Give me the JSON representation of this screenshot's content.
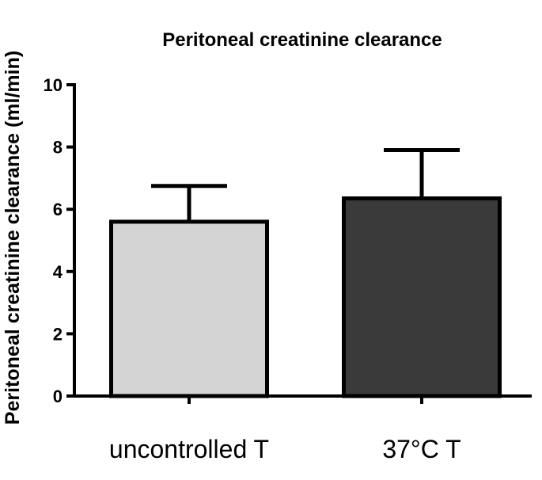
{
  "chart_data": {
    "type": "bar",
    "title": "Peritoneal creatinine clearance",
    "xlabel": "",
    "ylabel": "Peritoneal creatinine clearance (ml/min)",
    "categories": [
      "uncontrolled T",
      "37°C T"
    ],
    "values": [
      5.6,
      6.35
    ],
    "errors": [
      1.15,
      1.55
    ],
    "bar_colors": [
      "#d4d4d4",
      "#3a3a3a"
    ],
    "ylim": [
      0,
      10
    ],
    "yticks": [
      0,
      2,
      4,
      6,
      8,
      10
    ],
    "ytick_labels": [
      "0",
      "2",
      "4",
      "6",
      "8",
      "10"
    ],
    "grid": false,
    "legend": "none"
  },
  "colors": {
    "axis": "#000000",
    "bar_outline": "#000000",
    "background": "#ffffff"
  }
}
